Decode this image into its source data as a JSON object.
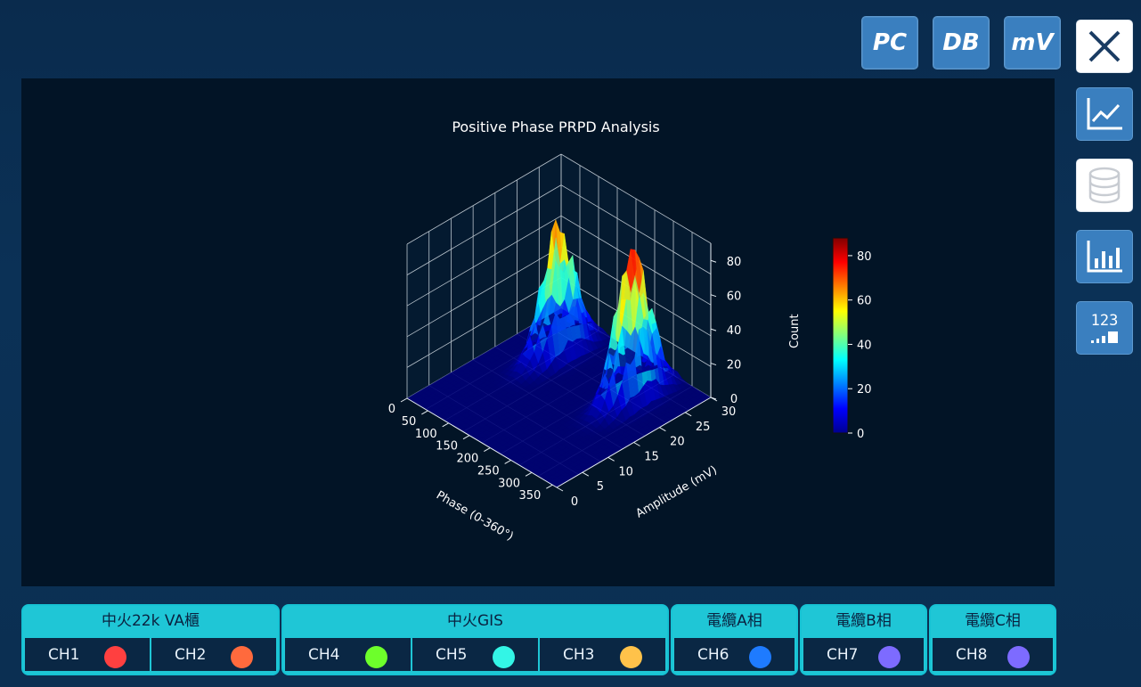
{
  "toolbar": {
    "pc_label": "PC",
    "db_label": "DB",
    "mv_label": "mV"
  },
  "side_icons": [
    "close-icon",
    "line-chart-icon",
    "database-icon",
    "bar-chart-icon",
    "numeric-display-icon"
  ],
  "side_numeric_text": "123",
  "chart_data": {
    "type": "surface3d",
    "title": "Positive Phase PRPD Analysis",
    "x_label": "Phase (0-360°)",
    "x_ticks": [
      "0",
      "50",
      "100",
      "150",
      "200",
      "250",
      "300",
      "350"
    ],
    "y_label": "Amplitude (mV)",
    "y_ticks": [
      "0",
      "5",
      "10",
      "15",
      "20",
      "25",
      "30"
    ],
    "z_ticks": [
      "0",
      "20",
      "40",
      "60",
      "80"
    ],
    "colorbar_label": "Count",
    "colorbar_ticks": [
      "0",
      "20",
      "40",
      "60",
      "80"
    ],
    "colormap": "jet",
    "zlim": [
      0,
      90
    ],
    "peaks": [
      {
        "phase": 90,
        "amplitude": 22,
        "count": 72
      },
      {
        "phase": 270,
        "amplitude": 22,
        "count": 86
      }
    ]
  },
  "groups": [
    {
      "title": "中火22k VA櫃",
      "channels": [
        {
          "label": "CH1",
          "color": "#ff4040"
        },
        {
          "label": "CH2",
          "color": "#ff6a3d"
        }
      ]
    },
    {
      "title": "中火GIS",
      "channels": [
        {
          "label": "CH4",
          "color": "#6dff2b"
        },
        {
          "label": "CH5",
          "color": "#33f5e6"
        },
        {
          "label": "CH3",
          "color": "#ffc24a"
        }
      ]
    },
    {
      "title": "電纜A相",
      "channels": [
        {
          "label": "CH6",
          "color": "#1e7bff"
        }
      ]
    },
    {
      "title": "電纜B相",
      "channels": [
        {
          "label": "CH7",
          "color": "#7d6bff"
        }
      ]
    },
    {
      "title": "電纜C相",
      "channels": [
        {
          "label": "CH8",
          "color": "#7d6bff"
        }
      ]
    }
  ]
}
